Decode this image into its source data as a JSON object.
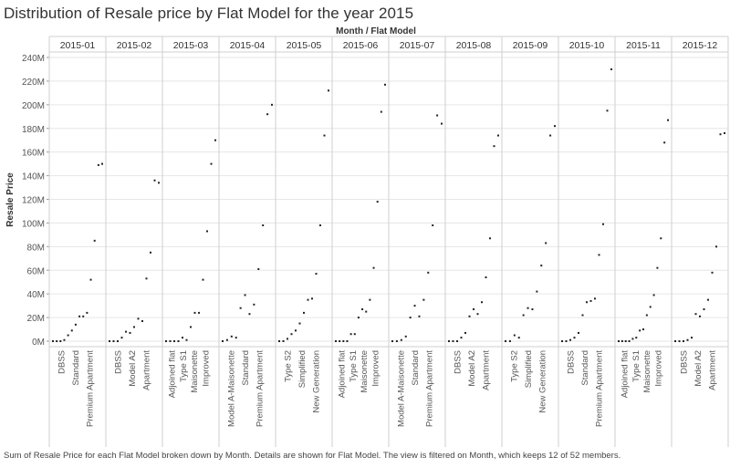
{
  "title": "Distribution of Resale  price by Flat Model for the year 2015",
  "caption": "Sum of Resale Price for each Flat Model broken down by Month.  Details are shown for Flat Model. The view is filtered on Month, which keeps 12 of 52 members.",
  "colors": {
    "mark": "#222222",
    "grid": "#e6e6e6",
    "divider": "#cfcfcf",
    "text": "#555555"
  },
  "chart_data": {
    "type": "scatter",
    "column_header": "Month / Flat Model",
    "ylabel": "Resale Price",
    "ylim": [
      0,
      240000000
    ],
    "y_ticks": [
      {
        "value": 0,
        "label": "0M"
      },
      {
        "value": 20000000,
        "label": "20M"
      },
      {
        "value": 40000000,
        "label": "40M"
      },
      {
        "value": 60000000,
        "label": "60M"
      },
      {
        "value": 80000000,
        "label": "80M"
      },
      {
        "value": 100000000,
        "label": "100M"
      },
      {
        "value": 120000000,
        "label": "120M"
      },
      {
        "value": 140000000,
        "label": "140M"
      },
      {
        "value": 160000000,
        "label": "160M"
      },
      {
        "value": 180000000,
        "label": "180M"
      },
      {
        "value": 200000000,
        "label": "200M"
      },
      {
        "value": 220000000,
        "label": "220M"
      },
      {
        "value": 240000000,
        "label": "240M"
      }
    ],
    "grid": true,
    "months": [
      {
        "month": "2015-01",
        "labels": [
          "DBSS",
          "Standard",
          "Premium Apartment"
        ],
        "values": [
          0,
          0,
          0,
          1000000,
          5000000,
          9000000,
          14000000,
          21000000,
          21000000,
          24000000,
          52000000,
          85000000,
          149000000,
          150000000
        ]
      },
      {
        "month": "2015-02",
        "labels": [
          "DBSS",
          "Model A2",
          "Apartment"
        ],
        "values": [
          0,
          0,
          0,
          3000000,
          8000000,
          7000000,
          12000000,
          19000000,
          17000000,
          53000000,
          75000000,
          136000000,
          134000000
        ]
      },
      {
        "month": "2015-03",
        "labels": [
          "Adjoined flat",
          "Type S1",
          "Maisonette",
          "Improved"
        ],
        "values": [
          0,
          0,
          0,
          0,
          3000000,
          1000000,
          12000000,
          24000000,
          24000000,
          52000000,
          93000000,
          150000000,
          170000000
        ]
      },
      {
        "month": "2015-04",
        "labels": [
          "Model A-Maisonette",
          "Standard",
          "Premium Apartment"
        ],
        "values": [
          0,
          1000000,
          4000000,
          3000000,
          28000000,
          39000000,
          23000000,
          31000000,
          61000000,
          98000000,
          192000000,
          200000000
        ]
      },
      {
        "month": "2015-05",
        "labels": [
          "Type S2",
          "Simplified",
          "New Generation"
        ],
        "values": [
          0,
          0,
          2000000,
          6000000,
          9000000,
          15000000,
          24000000,
          35000000,
          36000000,
          57000000,
          98000000,
          174000000,
          212000000
        ]
      },
      {
        "month": "2015-06",
        "labels": [
          "Adjoined flat",
          "Type S1",
          "Maisonette",
          "Improved"
        ],
        "values": [
          0,
          0,
          0,
          0,
          6000000,
          6000000,
          20000000,
          27000000,
          25000000,
          35000000,
          62000000,
          118000000,
          194000000,
          217000000
        ]
      },
      {
        "month": "2015-07",
        "labels": [
          "Model A-Maisonette",
          "Standard",
          "Premium Apartment"
        ],
        "values": [
          0,
          0,
          1000000,
          4000000,
          20000000,
          30000000,
          21000000,
          35000000,
          58000000,
          98000000,
          191000000,
          184000000
        ]
      },
      {
        "month": "2015-08",
        "labels": [
          "DBSS",
          "Model A2",
          "Apartment"
        ],
        "values": [
          0,
          0,
          0,
          3000000,
          7000000,
          21000000,
          27000000,
          23000000,
          33000000,
          54000000,
          87000000,
          165000000,
          174000000
        ]
      },
      {
        "month": "2015-09",
        "labels": [
          "Type S2",
          "Simplified",
          "New Generation"
        ],
        "values": [
          0,
          0,
          5000000,
          3000000,
          22000000,
          28000000,
          27000000,
          42000000,
          64000000,
          83000000,
          174000000,
          182000000
        ]
      },
      {
        "month": "2015-10",
        "labels": [
          "DBSS",
          "Standard",
          "Premium Apartment"
        ],
        "values": [
          0,
          0,
          1000000,
          3000000,
          7000000,
          22000000,
          33000000,
          34000000,
          36000000,
          73000000,
          99000000,
          195000000,
          230000000
        ]
      },
      {
        "month": "2015-11",
        "labels": [
          "Adjoined flat",
          "Type S1",
          "Maisonette",
          "Improved"
        ],
        "values": [
          0,
          0,
          0,
          0,
          2000000,
          3000000,
          9000000,
          10000000,
          22000000,
          29000000,
          39000000,
          62000000,
          87000000,
          168000000,
          187000000
        ]
      },
      {
        "month": "2015-12",
        "labels": [
          "DBSS",
          "Model A2",
          "Apartment"
        ],
        "values": [
          0,
          0,
          0,
          1000000,
          3000000,
          23000000,
          21000000,
          27000000,
          35000000,
          58000000,
          80000000,
          175000000,
          176000000
        ]
      }
    ]
  }
}
